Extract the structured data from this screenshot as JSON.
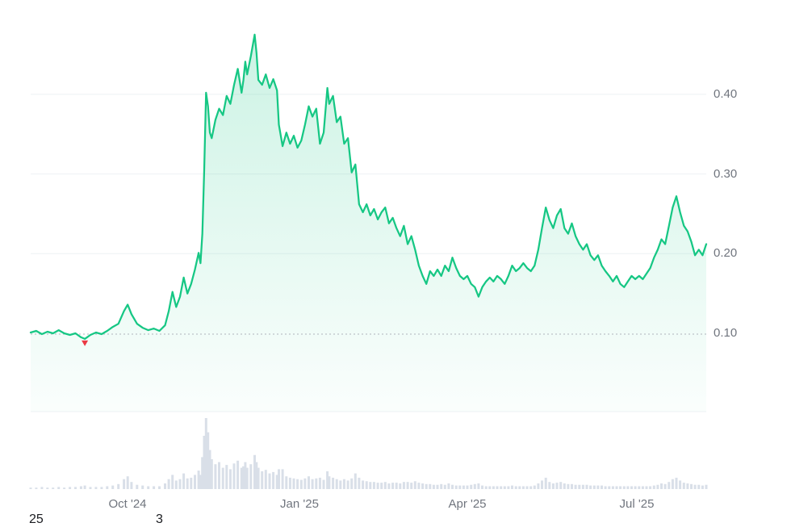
{
  "chart_data": {
    "type": "line",
    "title": "",
    "xlabel": "",
    "ylabel": "",
    "x_range": [
      "2024-08-10",
      "2025-08-07"
    ],
    "ylim": [
      0.07,
      0.51
    ],
    "grid": true,
    "legend": "none",
    "y_ticks": [
      0.1,
      0.2,
      0.3,
      0.4
    ],
    "y_tick_labels": [
      "0.10",
      "0.20",
      "0.30",
      "0.40"
    ],
    "x_tick_dates": [
      "2024-10-01",
      "2025-01-01",
      "2025-04-01",
      "2025-07-01"
    ],
    "x_tick_labels": [
      "Oct '24",
      "Jan '25",
      "Apr '25",
      "Jul '25"
    ],
    "baseline": {
      "price": 0.099,
      "style": "dotted"
    },
    "low_marker": {
      "date": "2024-09-08",
      "price": 0.093,
      "color": "#ea3943"
    },
    "colors": {
      "line": "#16c784",
      "fill_top": "rgba(22,199,132,0.22)",
      "fill_bottom": "rgba(22,199,132,0.02)",
      "volume_bar": "#d9dfe8",
      "grid": "#eef1f4",
      "baseline_dotted": "#b0b5bd",
      "tick_text": "#70757e"
    },
    "series": [
      {
        "name": "price",
        "type": "line"
      },
      {
        "name": "volume",
        "type": "bar"
      }
    ],
    "columns": [
      "date",
      "price",
      "volume"
    ],
    "points": [
      [
        "2024-08-10",
        0.101,
        2
      ],
      [
        "2024-08-13",
        0.103,
        2
      ],
      [
        "2024-08-16",
        0.099,
        3
      ],
      [
        "2024-08-19",
        0.102,
        2
      ],
      [
        "2024-08-22",
        0.1,
        2
      ],
      [
        "2024-08-25",
        0.104,
        3
      ],
      [
        "2024-08-28",
        0.1,
        2
      ],
      [
        "2024-08-31",
        0.098,
        3
      ],
      [
        "2024-09-03",
        0.1,
        3
      ],
      [
        "2024-09-06",
        0.095,
        4
      ],
      [
        "2024-09-08",
        0.093,
        5
      ],
      [
        "2024-09-11",
        0.098,
        3
      ],
      [
        "2024-09-14",
        0.101,
        3
      ],
      [
        "2024-09-17",
        0.099,
        3
      ],
      [
        "2024-09-20",
        0.103,
        4
      ],
      [
        "2024-09-23",
        0.108,
        5
      ],
      [
        "2024-09-26",
        0.112,
        7
      ],
      [
        "2024-09-29",
        0.128,
        14
      ],
      [
        "2024-10-01",
        0.136,
        18
      ],
      [
        "2024-10-03",
        0.124,
        10
      ],
      [
        "2024-10-06",
        0.112,
        6
      ],
      [
        "2024-10-09",
        0.107,
        5
      ],
      [
        "2024-10-12",
        0.104,
        4
      ],
      [
        "2024-10-15",
        0.106,
        4
      ],
      [
        "2024-10-18",
        0.103,
        4
      ],
      [
        "2024-10-21",
        0.11,
        8
      ],
      [
        "2024-10-23",
        0.128,
        14
      ],
      [
        "2024-10-25",
        0.152,
        20
      ],
      [
        "2024-10-27",
        0.133,
        12
      ],
      [
        "2024-10-29",
        0.146,
        14
      ],
      [
        "2024-10-31",
        0.17,
        22
      ],
      [
        "2024-11-02",
        0.15,
        15
      ],
      [
        "2024-11-04",
        0.162,
        16
      ],
      [
        "2024-11-06",
        0.18,
        20
      ],
      [
        "2024-11-08",
        0.201,
        26
      ],
      [
        "2024-11-09",
        0.188,
        20
      ],
      [
        "2024-11-10",
        0.225,
        45
      ],
      [
        "2024-11-11",
        0.305,
        75
      ],
      [
        "2024-11-12",
        0.402,
        100
      ],
      [
        "2024-11-13",
        0.385,
        80
      ],
      [
        "2024-11-14",
        0.352,
        55
      ],
      [
        "2024-11-15",
        0.345,
        42
      ],
      [
        "2024-11-17",
        0.368,
        35
      ],
      [
        "2024-11-19",
        0.382,
        38
      ],
      [
        "2024-11-21",
        0.374,
        30
      ],
      [
        "2024-11-23",
        0.398,
        34
      ],
      [
        "2024-11-25",
        0.388,
        28
      ],
      [
        "2024-11-27",
        0.412,
        36
      ],
      [
        "2024-11-29",
        0.432,
        40
      ],
      [
        "2024-12-01",
        0.402,
        30
      ],
      [
        "2024-12-02",
        0.418,
        32
      ],
      [
        "2024-12-03",
        0.441,
        38
      ],
      [
        "2024-12-04",
        0.425,
        30
      ],
      [
        "2024-12-06",
        0.448,
        35
      ],
      [
        "2024-12-08",
        0.475,
        48
      ],
      [
        "2024-12-09",
        0.452,
        38
      ],
      [
        "2024-12-10",
        0.418,
        30
      ],
      [
        "2024-12-12",
        0.412,
        25
      ],
      [
        "2024-12-14",
        0.425,
        27
      ],
      [
        "2024-12-16",
        0.408,
        22
      ],
      [
        "2024-12-18",
        0.419,
        24
      ],
      [
        "2024-12-20",
        0.405,
        20
      ],
      [
        "2024-12-21",
        0.362,
        28
      ],
      [
        "2024-12-23",
        0.335,
        28
      ],
      [
        "2024-12-25",
        0.352,
        18
      ],
      [
        "2024-12-27",
        0.338,
        16
      ],
      [
        "2024-12-29",
        0.348,
        15
      ],
      [
        "2024-12-31",
        0.333,
        14
      ],
      [
        "2025-01-02",
        0.342,
        13
      ],
      [
        "2025-01-04",
        0.362,
        15
      ],
      [
        "2025-01-06",
        0.385,
        18
      ],
      [
        "2025-01-08",
        0.372,
        14
      ],
      [
        "2025-01-10",
        0.382,
        15
      ],
      [
        "2025-01-12",
        0.338,
        16
      ],
      [
        "2025-01-14",
        0.352,
        13
      ],
      [
        "2025-01-16",
        0.408,
        25
      ],
      [
        "2025-01-17",
        0.388,
        18
      ],
      [
        "2025-01-19",
        0.398,
        16
      ],
      [
        "2025-01-21",
        0.365,
        14
      ],
      [
        "2025-01-23",
        0.372,
        12
      ],
      [
        "2025-01-25",
        0.338,
        14
      ],
      [
        "2025-01-27",
        0.345,
        12
      ],
      [
        "2025-01-29",
        0.302,
        15
      ],
      [
        "2025-01-31",
        0.312,
        22
      ],
      [
        "2025-02-02",
        0.262,
        16
      ],
      [
        "2025-02-04",
        0.252,
        12
      ],
      [
        "2025-02-06",
        0.262,
        11
      ],
      [
        "2025-02-08",
        0.248,
        10
      ],
      [
        "2025-02-10",
        0.256,
        10
      ],
      [
        "2025-02-12",
        0.243,
        9
      ],
      [
        "2025-02-14",
        0.252,
        9
      ],
      [
        "2025-02-16",
        0.258,
        10
      ],
      [
        "2025-02-18",
        0.238,
        8
      ],
      [
        "2025-02-20",
        0.245,
        9
      ],
      [
        "2025-02-22",
        0.232,
        9
      ],
      [
        "2025-02-24",
        0.222,
        8
      ],
      [
        "2025-02-26",
        0.235,
        10
      ],
      [
        "2025-02-28",
        0.212,
        10
      ],
      [
        "2025-03-02",
        0.222,
        9
      ],
      [
        "2025-03-04",
        0.205,
        11
      ],
      [
        "2025-03-06",
        0.185,
        9
      ],
      [
        "2025-03-08",
        0.172,
        8
      ],
      [
        "2025-03-10",
        0.162,
        7
      ],
      [
        "2025-03-12",
        0.178,
        7
      ],
      [
        "2025-03-14",
        0.172,
        6
      ],
      [
        "2025-03-16",
        0.18,
        6
      ],
      [
        "2025-03-18",
        0.172,
        7
      ],
      [
        "2025-03-20",
        0.185,
        6
      ],
      [
        "2025-03-22",
        0.178,
        8
      ],
      [
        "2025-03-24",
        0.195,
        6
      ],
      [
        "2025-03-26",
        0.182,
        5
      ],
      [
        "2025-03-28",
        0.172,
        5
      ],
      [
        "2025-03-30",
        0.168,
        5
      ],
      [
        "2025-04-01",
        0.172,
        5
      ],
      [
        "2025-04-03",
        0.162,
        6
      ],
      [
        "2025-04-05",
        0.158,
        7
      ],
      [
        "2025-04-07",
        0.146,
        8
      ],
      [
        "2025-04-09",
        0.158,
        5
      ],
      [
        "2025-04-11",
        0.165,
        4
      ],
      [
        "2025-04-13",
        0.17,
        4
      ],
      [
        "2025-04-15",
        0.165,
        4
      ],
      [
        "2025-04-17",
        0.172,
        4
      ],
      [
        "2025-04-19",
        0.168,
        4
      ],
      [
        "2025-04-21",
        0.162,
        4
      ],
      [
        "2025-04-23",
        0.172,
        4
      ],
      [
        "2025-04-25",
        0.185,
        5
      ],
      [
        "2025-04-27",
        0.178,
        4
      ],
      [
        "2025-04-29",
        0.182,
        4
      ],
      [
        "2025-05-01",
        0.188,
        4
      ],
      [
        "2025-05-03",
        0.182,
        4
      ],
      [
        "2025-05-05",
        0.178,
        4
      ],
      [
        "2025-05-07",
        0.185,
        5
      ],
      [
        "2025-05-09",
        0.205,
        8
      ],
      [
        "2025-05-11",
        0.232,
        12
      ],
      [
        "2025-05-13",
        0.258,
        16
      ],
      [
        "2025-05-15",
        0.242,
        10
      ],
      [
        "2025-05-17",
        0.232,
        8
      ],
      [
        "2025-05-19",
        0.248,
        9
      ],
      [
        "2025-05-21",
        0.256,
        10
      ],
      [
        "2025-05-23",
        0.232,
        8
      ],
      [
        "2025-05-25",
        0.225,
        7
      ],
      [
        "2025-05-27",
        0.238,
        7
      ],
      [
        "2025-05-29",
        0.222,
        6
      ],
      [
        "2025-05-31",
        0.212,
        6
      ],
      [
        "2025-06-02",
        0.205,
        6
      ],
      [
        "2025-06-04",
        0.212,
        6
      ],
      [
        "2025-06-06",
        0.198,
        5
      ],
      [
        "2025-06-08",
        0.192,
        5
      ],
      [
        "2025-06-10",
        0.198,
        5
      ],
      [
        "2025-06-12",
        0.185,
        5
      ],
      [
        "2025-06-14",
        0.178,
        4
      ],
      [
        "2025-06-16",
        0.172,
        4
      ],
      [
        "2025-06-18",
        0.165,
        4
      ],
      [
        "2025-06-20",
        0.172,
        4
      ],
      [
        "2025-06-22",
        0.162,
        4
      ],
      [
        "2025-06-24",
        0.158,
        4
      ],
      [
        "2025-06-26",
        0.165,
        4
      ],
      [
        "2025-06-28",
        0.172,
        4
      ],
      [
        "2025-06-30",
        0.168,
        4
      ],
      [
        "2025-07-02",
        0.172,
        4
      ],
      [
        "2025-07-04",
        0.168,
        4
      ],
      [
        "2025-07-06",
        0.175,
        4
      ],
      [
        "2025-07-08",
        0.182,
        4
      ],
      [
        "2025-07-10",
        0.195,
        5
      ],
      [
        "2025-07-12",
        0.205,
        6
      ],
      [
        "2025-07-14",
        0.218,
        8
      ],
      [
        "2025-07-16",
        0.212,
        7
      ],
      [
        "2025-07-18",
        0.235,
        10
      ],
      [
        "2025-07-20",
        0.258,
        14
      ],
      [
        "2025-07-22",
        0.272,
        16
      ],
      [
        "2025-07-24",
        0.252,
        12
      ],
      [
        "2025-07-26",
        0.235,
        9
      ],
      [
        "2025-07-28",
        0.228,
        8
      ],
      [
        "2025-07-30",
        0.215,
        7
      ],
      [
        "2025-08-01",
        0.198,
        6
      ],
      [
        "2025-08-03",
        0.205,
        6
      ],
      [
        "2025-08-05",
        0.198,
        5
      ],
      [
        "2025-08-07",
        0.212,
        6
      ]
    ]
  },
  "footer": {
    "left_text": "25",
    "right_text": "3"
  }
}
